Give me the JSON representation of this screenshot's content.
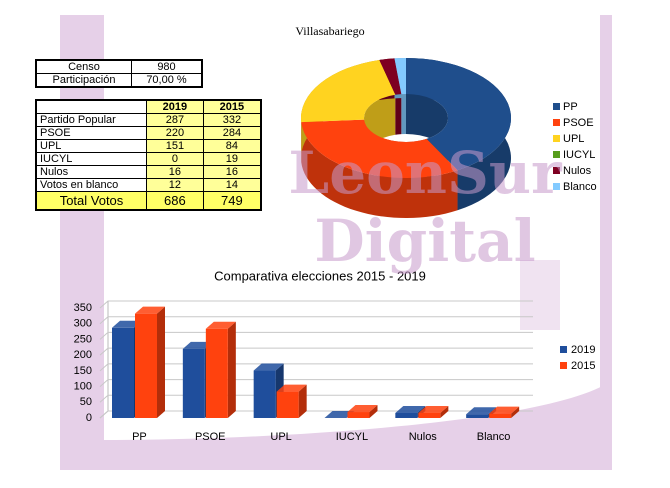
{
  "title": "Villasabariego",
  "summary": {
    "rows": [
      [
        "Censo",
        980
      ],
      [
        "Participación",
        "70,00 %"
      ]
    ]
  },
  "results": {
    "headers": [
      "2019",
      "2015"
    ],
    "rows": [
      [
        "Partido Popular",
        287,
        332
      ],
      [
        "PSOE",
        220,
        284
      ],
      [
        "UPL",
        151,
        84
      ],
      [
        "IUCYL",
        0,
        19
      ],
      [
        "Nulos",
        16,
        16
      ],
      [
        "Votos en blanco",
        12,
        14
      ]
    ],
    "total": [
      "Total Votos",
      686,
      749
    ]
  },
  "watermark": [
    "LeonSur",
    "Digital"
  ],
  "chart_data": [
    {
      "type": "pie",
      "categories": [
        "PP",
        "PSOE",
        "UPL",
        "IUCYL",
        "Nulos",
        "Blanco"
      ],
      "values": [
        287,
        220,
        151,
        0,
        16,
        12
      ],
      "colors": [
        "#1f4e8c",
        "#ff420e",
        "#ffd320",
        "#579d1c",
        "#7e0021",
        "#83caff"
      ],
      "legend": "right"
    },
    {
      "type": "bar",
      "title": "Comparativa elecciones 2015 - 2019",
      "categories": [
        "PP",
        "PSOE",
        "UPL",
        "IUCYL",
        "Nulos",
        "Blanco"
      ],
      "series": [
        {
          "name": "2019",
          "color": "#1f4e9c",
          "values": [
            287,
            220,
            151,
            0,
            16,
            12
          ]
        },
        {
          "name": "2015",
          "color": "#ff420e",
          "values": [
            332,
            284,
            84,
            19,
            16,
            14
          ]
        }
      ],
      "ylim": [
        0,
        350
      ],
      "yticks": [
        0,
        50,
        100,
        150,
        200,
        250,
        300,
        350
      ],
      "grid": true,
      "legend": "right"
    }
  ]
}
